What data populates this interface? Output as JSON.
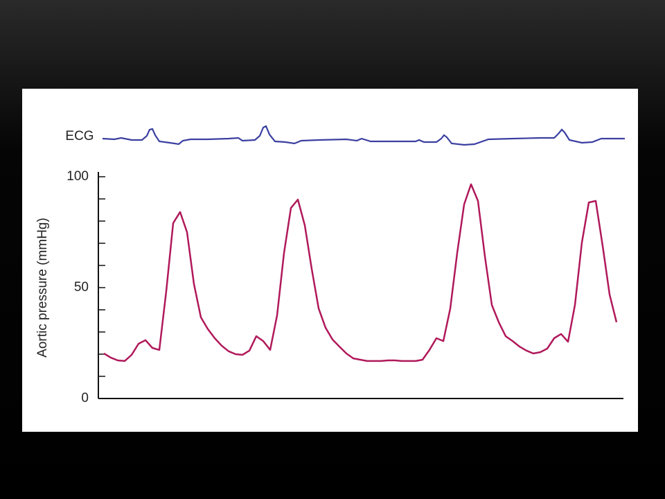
{
  "chart_data": {
    "type": "line",
    "ecg_label": "ECG",
    "y_label": "Aortic pressure (mmHg)",
    "ylim": [
      0,
      100
    ],
    "yticks": [
      0,
      50,
      100
    ],
    "yminor_ticks": [
      10,
      20,
      30,
      40,
      60,
      70,
      80,
      90
    ],
    "series": [
      {
        "name": "Aortic pressure",
        "color": "#b0185a",
        "values": [
          20.3,
          18.4,
          17.2,
          16.9,
          19.7,
          24.7,
          26.3,
          22.8,
          21.9,
          48.4,
          79.1,
          84.1,
          75,
          51.6,
          36.6,
          31.3,
          27.2,
          23.8,
          21.3,
          20,
          19.7,
          21.6,
          28.1,
          25.9,
          21.9,
          37.5,
          65.6,
          85.9,
          89.7,
          78.1,
          58.4,
          40.6,
          31.9,
          26.6,
          23.4,
          20.3,
          18.1,
          17.5,
          16.9,
          16.9,
          16.9,
          17.2,
          17.2,
          16.9,
          16.9,
          16.9,
          17.5,
          21.9,
          27.2,
          25.9,
          40.6,
          65.6,
          87.5,
          96.6,
          89.1,
          64.1,
          42.2,
          34.4,
          28.1,
          25.9,
          23.4,
          21.6,
          20.3,
          20.9,
          22.5,
          27.2,
          29.1,
          25.6,
          42.2,
          70.3,
          88.4,
          89.1,
          68.8,
          46.9,
          34.4
        ]
      }
    ]
  }
}
